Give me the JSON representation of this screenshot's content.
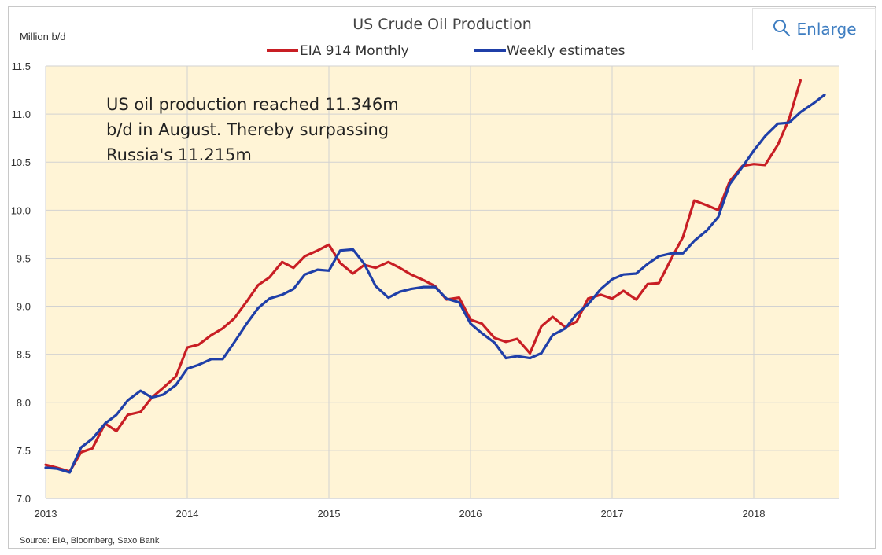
{
  "enlarge_button": {
    "label": "Enlarge",
    "icon": "magnifier-icon",
    "color": "#3f7ec1"
  },
  "chart_data": {
    "type": "line",
    "title": "US Crude Oil Production",
    "ylabel": "Million b/d",
    "xlabel": "",
    "ylim": [
      7.0,
      11.5
    ],
    "xlim": [
      2013.0,
      2018.6
    ],
    "y_ticks": [
      "7.0",
      "7.5",
      "8.0",
      "8.5",
      "9.0",
      "9.5",
      "10.0",
      "10.5",
      "11.0",
      "11.5"
    ],
    "x_ticks": [
      "2013",
      "2014",
      "2015",
      "2016",
      "2017",
      "2018"
    ],
    "grid": true,
    "legend": "top-center",
    "plot_background": "#fff4d6",
    "annotation": [
      "US oil production reached 11.346m",
      "b/d in August. Thereby surpassing",
      "Russia's 11.215m"
    ],
    "source": "Source: EIA, Bloomberg, Saxo Bank",
    "series": [
      {
        "name": "EIA 914 Monthly",
        "color": "#c81e24",
        "x": [
          2013.0,
          2013.08,
          2013.17,
          2013.25,
          2013.33,
          2013.42,
          2013.5,
          2013.58,
          2013.67,
          2013.75,
          2013.83,
          2013.92,
          2014.0,
          2014.08,
          2014.17,
          2014.25,
          2014.33,
          2014.42,
          2014.5,
          2014.58,
          2014.67,
          2014.75,
          2014.83,
          2014.92,
          2015.0,
          2015.08,
          2015.17,
          2015.25,
          2015.33,
          2015.42,
          2015.5,
          2015.58,
          2015.67,
          2015.75,
          2015.83,
          2015.92,
          2016.0,
          2016.08,
          2016.17,
          2016.25,
          2016.33,
          2016.42,
          2016.5,
          2016.58,
          2016.67,
          2016.75,
          2016.83,
          2016.92,
          2017.0,
          2017.08,
          2017.17,
          2017.25,
          2017.33,
          2017.42,
          2017.5,
          2017.58,
          2017.67,
          2017.75,
          2017.83,
          2017.92,
          2018.0,
          2018.08,
          2018.17,
          2018.25,
          2018.33
        ],
        "values": [
          7.35,
          7.32,
          7.28,
          7.48,
          7.52,
          7.78,
          7.7,
          7.87,
          7.9,
          8.05,
          8.15,
          8.27,
          8.57,
          8.6,
          8.7,
          8.77,
          8.87,
          9.05,
          9.22,
          9.3,
          9.46,
          9.4,
          9.52,
          9.58,
          9.64,
          9.45,
          9.34,
          9.43,
          9.4,
          9.46,
          9.4,
          9.33,
          9.27,
          9.21,
          9.07,
          9.09,
          8.86,
          8.82,
          8.67,
          8.63,
          8.66,
          8.51,
          8.79,
          8.89,
          8.78,
          8.84,
          9.08,
          9.12,
          9.08,
          9.16,
          9.07,
          9.23,
          9.24,
          9.5,
          9.72,
          10.1,
          10.05,
          10.0,
          10.3,
          10.46,
          10.48,
          10.47,
          10.68,
          10.95,
          11.35
        ]
      },
      {
        "name": "Weekly estimates",
        "color": "#1f3fa8",
        "x": [
          2013.0,
          2013.08,
          2013.17,
          2013.25,
          2013.33,
          2013.42,
          2013.5,
          2013.58,
          2013.67,
          2013.75,
          2013.83,
          2013.92,
          2014.0,
          2014.08,
          2014.17,
          2014.25,
          2014.33,
          2014.42,
          2014.5,
          2014.58,
          2014.67,
          2014.75,
          2014.83,
          2014.92,
          2015.0,
          2015.08,
          2015.17,
          2015.25,
          2015.33,
          2015.42,
          2015.5,
          2015.58,
          2015.67,
          2015.75,
          2015.83,
          2015.92,
          2016.0,
          2016.08,
          2016.17,
          2016.25,
          2016.33,
          2016.42,
          2016.5,
          2016.58,
          2016.67,
          2016.75,
          2016.83,
          2016.92,
          2017.0,
          2017.08,
          2017.17,
          2017.25,
          2017.33,
          2017.42,
          2017.5,
          2017.58,
          2017.67,
          2017.75,
          2017.83,
          2017.92,
          2018.0,
          2018.08,
          2018.17,
          2018.25,
          2018.33,
          2018.42,
          2018.5
        ],
        "values": [
          7.32,
          7.31,
          7.27,
          7.53,
          7.62,
          7.78,
          7.87,
          8.02,
          8.12,
          8.05,
          8.08,
          8.18,
          8.35,
          8.39,
          8.45,
          8.45,
          8.62,
          8.82,
          8.98,
          9.08,
          9.12,
          9.18,
          9.33,
          9.38,
          9.37,
          9.58,
          9.59,
          9.44,
          9.21,
          9.09,
          9.15,
          9.18,
          9.2,
          9.2,
          9.08,
          9.04,
          8.82,
          8.72,
          8.62,
          8.46,
          8.48,
          8.46,
          8.51,
          8.7,
          8.77,
          8.92,
          9.02,
          9.18,
          9.28,
          9.33,
          9.34,
          9.44,
          9.52,
          9.55,
          9.55,
          9.68,
          9.79,
          9.93,
          10.27,
          10.45,
          10.62,
          10.77,
          10.9,
          10.91,
          11.02,
          11.11,
          11.2
        ]
      }
    ]
  }
}
